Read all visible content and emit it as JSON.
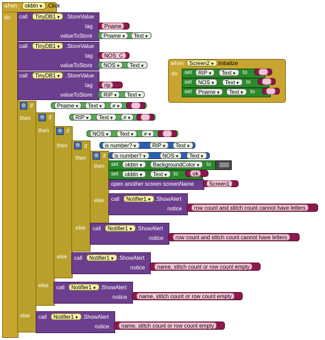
{
  "when_kw": "when",
  "do_kw": "do",
  "call_kw": "call",
  "set_kw": "set",
  "to_kw": "to",
  "if_kw": "if",
  "then_kw": "then",
  "else_kw": "else",
  "main_event": {
    "component": "okbtn",
    "event": ".Click"
  },
  "store_blocks": [
    {
      "db": "TinyDB1",
      "method": ".StoreValue",
      "tag_label": "tag",
      "tag": "Pname",
      "value_label": "valueToStore",
      "comp": "Pname",
      "prop": "Text"
    },
    {
      "db": "TinyDB1",
      "method": ".StoreValue",
      "tag_label": "tag",
      "tag": "NOS_C",
      "value_label": "valueToStore",
      "comp": "NOS",
      "prop": "Text"
    },
    {
      "db": "TinyDB1",
      "method": ".StoreValue",
      "tag_label": "tag",
      "tag": "rip",
      "value_label": "valueToStore",
      "comp": "RIP",
      "prop": "Text"
    }
  ],
  "screen_init": {
    "component": "Screen2",
    "event": ".Initialize",
    "sets": [
      {
        "comp": "RIP",
        "prop": "Text"
      },
      {
        "comp": "NOS",
        "prop": "Text"
      },
      {
        "comp": "Pname",
        "prop": "Text"
      }
    ]
  },
  "if_conditions": [
    {
      "comp": "Pname",
      "prop": "Text",
      "op": "≠"
    },
    {
      "comp": "RIP",
      "prop": "Text",
      "op": "≠"
    },
    {
      "comp": "NOS",
      "prop": "Text",
      "op": "≠"
    }
  ],
  "number_checks": [
    {
      "fn": "is number?",
      "comp": "RIP",
      "prop": "Text"
    },
    {
      "fn": "is number?",
      "comp": "NOS",
      "prop": "Text"
    }
  ],
  "then_actions": {
    "set1": {
      "comp": "okbtn",
      "prop": "BackgroundColor"
    },
    "set2": {
      "comp": "okbtn",
      "prop": "Text",
      "value": "ok"
    },
    "open_screen": "open another screen  screenName",
    "screen_name": "Screen1"
  },
  "alerts": [
    {
      "comp": "Notifier1",
      "method": ".ShowAlert",
      "notice_label": "notice",
      "msg": "row count and stitch count cannot have letters"
    },
    {
      "comp": "Notifier1",
      "method": ".ShowAlert",
      "notice_label": "notice",
      "msg": "row count and stitch count cannot have letters"
    },
    {
      "comp": "Notifier1",
      "method": ".ShowAlert",
      "notice_label": "notice",
      "msg": "name, stitch count or row count empty"
    },
    {
      "comp": "Notifier1",
      "method": ".ShowAlert",
      "notice_label": "notice",
      "msg": "name, stitch count or row count empty"
    },
    {
      "comp": "Notifier1",
      "method": ".ShowAlert",
      "notice_label": "notice",
      "msg": "name, stitch count or row count empty"
    }
  ],
  "icons": {
    "dropdown": "dropdown-arrow-icon",
    "gear": "mutator-gear-icon"
  },
  "colors": {
    "event": "#c8a530",
    "procedure": "#6c3e8e",
    "control": "#b8a02a",
    "setter": "#2b8a2b",
    "text": "#8d1a4c"
  }
}
